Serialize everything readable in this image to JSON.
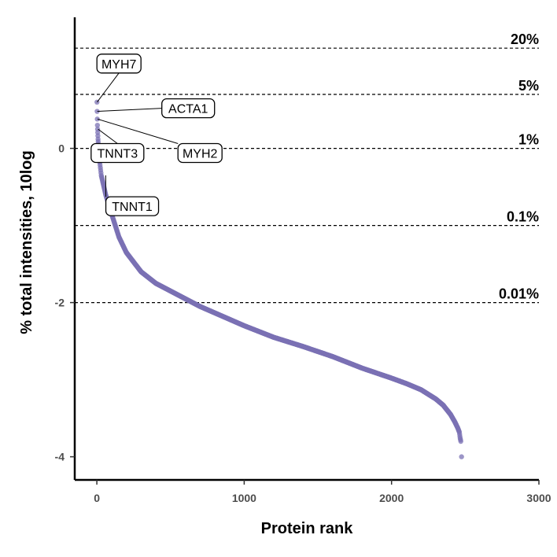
{
  "chart_data": {
    "type": "scatter",
    "xlabel": "Protein rank",
    "ylabel": "% total intensities, 10log",
    "xlim": [
      -150,
      3000
    ],
    "ylim": [
      -4.3,
      1.7
    ],
    "x_ticks": [
      0,
      1000,
      2000,
      3000
    ],
    "x_tick_labels": [
      "0",
      "1000",
      "2000",
      "3000"
    ],
    "y_ticks": [
      -4,
      -2,
      0
    ],
    "y_tick_labels": [
      "-4",
      "-2",
      "0"
    ],
    "grid": false,
    "point_color": "#7b72b4",
    "curve_knots": {
      "rank": [
        1,
        2,
        3,
        4,
        5,
        8,
        15,
        30,
        60,
        100,
        150,
        200,
        300,
        400,
        500,
        700,
        1000,
        1200,
        1400,
        1600,
        1800,
        2000,
        2100,
        2200,
        2300,
        2350,
        2400,
        2430,
        2450,
        2460,
        2465,
        2470
      ],
      "value": [
        0.6,
        0.48,
        0.38,
        0.3,
        0.25,
        0.12,
        -0.1,
        -0.35,
        -0.6,
        -0.85,
        -1.15,
        -1.35,
        -1.6,
        -1.75,
        -1.85,
        -2.05,
        -2.3,
        -2.45,
        -2.57,
        -2.7,
        -2.85,
        -2.98,
        -3.05,
        -3.13,
        -3.25,
        -3.33,
        -3.45,
        -3.55,
        -3.63,
        -3.68,
        -3.75,
        -3.8
      ]
    },
    "extra_points": [
      {
        "x": 2475,
        "y": -4.0
      }
    ],
    "reference_lines": [
      {
        "y": 1.3,
        "label": "20%"
      },
      {
        "y": 0.7,
        "label": "5%"
      },
      {
        "y": 0.0,
        "label": "1%"
      },
      {
        "y": -1.0,
        "label": "0.1%"
      },
      {
        "y": -2.0,
        "label": "0.01%"
      }
    ],
    "annotations": [
      {
        "label": "MYH7",
        "point": {
          "x": 2,
          "y": 0.6
        },
        "anchor": {
          "x": 150,
          "y": 1.1
        }
      },
      {
        "label": "ACTA1",
        "point": {
          "x": 3,
          "y": 0.48
        },
        "anchor": {
          "x": 620,
          "y": 0.52
        }
      },
      {
        "label": "MYH2",
        "point": {
          "x": 5,
          "y": 0.38
        },
        "anchor": {
          "x": 700,
          "y": -0.06
        }
      },
      {
        "label": "TNNT3",
        "point": {
          "x": 8,
          "y": 0.25
        },
        "anchor": {
          "x": 140,
          "y": -0.06
        }
      },
      {
        "label": "TNNT1",
        "point": {
          "x": 60,
          "y": -0.35
        },
        "anchor": {
          "x": 240,
          "y": -0.75
        }
      }
    ]
  }
}
